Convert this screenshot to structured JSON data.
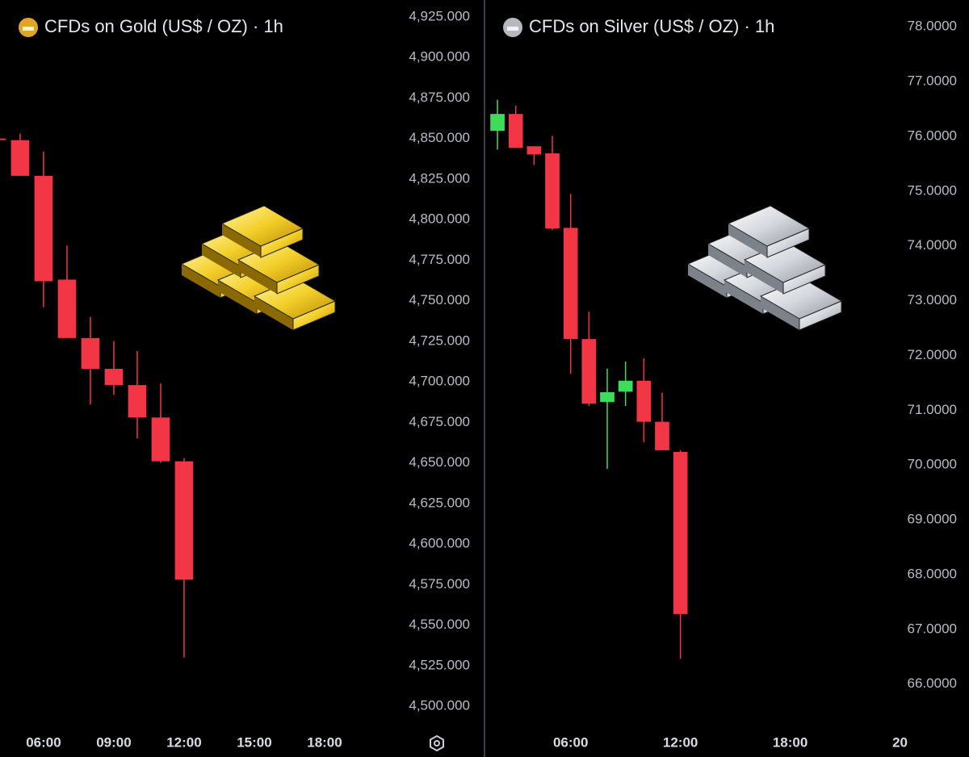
{
  "chart_data": [
    {
      "type": "candlestick",
      "title": "CFDs on Gold (US$ / OZ) · 1h",
      "x": [
        4,
        5,
        6,
        7,
        8,
        9,
        10,
        11,
        12
      ],
      "open": [
        4850,
        4849,
        4827,
        4763,
        4727,
        4708,
        4698,
        4678,
        4651
      ],
      "high": [
        4850,
        4853,
        4842,
        4784,
        4740,
        4725,
        4719,
        4699,
        4653
      ],
      "low": [
        4849,
        4827,
        4746,
        4727,
        4686,
        4692,
        4665,
        4650,
        4530
      ],
      "close": [
        4849,
        4827,
        4762,
        4727,
        4708,
        4698,
        4678,
        4651,
        4578
      ],
      "up_color": "#3ddc5b",
      "down_color": "#f23645",
      "xlim": [
        4.14,
        20.69
      ],
      "xticks": [
        {
          "value": 6,
          "label": "06:00"
        },
        {
          "value": 9,
          "label": "09:00"
        },
        {
          "value": 12,
          "label": "12:00"
        },
        {
          "value": 15,
          "label": "15:00"
        },
        {
          "value": 18,
          "label": "18:00"
        }
      ],
      "ylim": [
        4487.6,
        4935.4
      ],
      "yticks": [
        {
          "value": 4500,
          "label": "4,500.000"
        },
        {
          "value": 4525,
          "label": "4,525.000"
        },
        {
          "value": 4550,
          "label": "4,550.000"
        },
        {
          "value": 4575,
          "label": "4,575.000"
        },
        {
          "value": 4600,
          "label": "4,600.000"
        },
        {
          "value": 4625,
          "label": "4,625.000"
        },
        {
          "value": 4650,
          "label": "4,650.000"
        },
        {
          "value": 4675,
          "label": "4,675.000"
        },
        {
          "value": 4700,
          "label": "4,700.000"
        },
        {
          "value": 4725,
          "label": "4,725.000"
        },
        {
          "value": 4750,
          "label": "4,750.000"
        },
        {
          "value": 4775,
          "label": "4,775.000"
        },
        {
          "value": 4800,
          "label": "4,800.000"
        },
        {
          "value": 4825,
          "label": "4,825.000"
        },
        {
          "value": 4850,
          "label": "4,850.000"
        },
        {
          "value": 4875,
          "label": "4,875.000"
        },
        {
          "value": 4900,
          "label": "4,900.000"
        },
        {
          "value": 4925,
          "label": "4,925.000"
        }
      ]
    },
    {
      "type": "candlestick",
      "title": "CFDs on Silver (US$ / OZ) · 1h",
      "x": [
        2,
        3,
        4,
        5,
        6,
        7,
        8,
        9,
        10,
        11,
        12
      ],
      "open": [
        76.1,
        76.41,
        75.82,
        75.69,
        74.33,
        72.3,
        71.15,
        71.34,
        71.54,
        70.79,
        70.24
      ],
      "high": [
        76.67,
        76.56,
        75.82,
        76.01,
        74.95,
        72.8,
        71.76,
        71.89,
        71.95,
        71.32,
        70.27
      ],
      "low": [
        75.76,
        75.79,
        75.48,
        74.29,
        71.67,
        71.08,
        69.93,
        71.08,
        70.42,
        70.27,
        66.46
      ],
      "close": [
        76.41,
        75.79,
        75.67,
        74.32,
        72.3,
        71.12,
        71.33,
        71.54,
        70.79,
        70.27,
        67.28
      ],
      "up_color": "#3ddc5b",
      "down_color": "#f23645",
      "xlim": [
        1.38,
        23.8
      ],
      "xticks": [
        {
          "value": 6,
          "label": "06:00"
        },
        {
          "value": 12,
          "label": "12:00"
        },
        {
          "value": 18,
          "label": "18:00"
        },
        {
          "value": 24,
          "label": "20"
        }
      ],
      "ylim": [
        65.23,
        78.49
      ],
      "yticks": [
        {
          "value": 66,
          "label": "66.0000"
        },
        {
          "value": 67,
          "label": "67.0000"
        },
        {
          "value": 68,
          "label": "68.0000"
        },
        {
          "value": 69,
          "label": "69.0000"
        },
        {
          "value": 70,
          "label": "70.0000"
        },
        {
          "value": 71,
          "label": "71.0000"
        },
        {
          "value": 72,
          "label": "72.0000"
        },
        {
          "value": 73,
          "label": "73.0000"
        },
        {
          "value": 74,
          "label": "74.0000"
        },
        {
          "value": 75,
          "label": "75.0000"
        },
        {
          "value": 76,
          "label": "76.0000"
        },
        {
          "value": 77,
          "label": "77.0000"
        },
        {
          "value": 78,
          "label": "78.0000"
        }
      ]
    }
  ]
}
